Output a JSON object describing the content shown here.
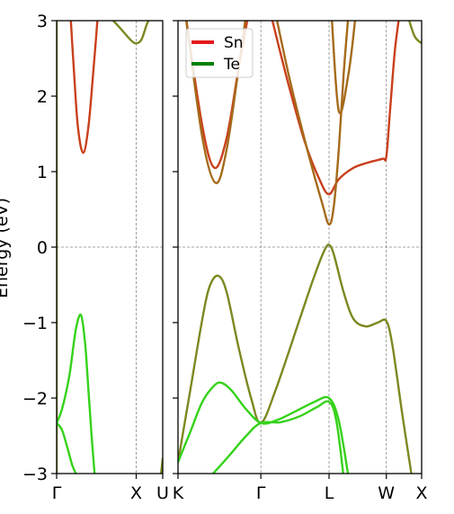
{
  "chart_data": {
    "type": "line",
    "ylabel": "Energy (eV)",
    "ylim": [
      -3,
      3
    ],
    "yticks": [
      -3,
      -2,
      -1,
      0,
      1,
      2,
      3
    ],
    "ytick_labels": [
      "−3",
      "−2",
      "−1",
      "0",
      "1",
      "2",
      "3"
    ],
    "grid": "dashed lines at high-symmetry points and at 0 eV",
    "legend": {
      "placement": "top-left",
      "entries": [
        {
          "name": "Sn",
          "color": "#e41a1c"
        },
        {
          "name": "Te",
          "color": "#008000"
        }
      ]
    },
    "panels": [
      {
        "xlim": [
          0,
          1
        ],
        "ticks": [
          {
            "pos": 0,
            "label": "Γ"
          },
          {
            "pos": 0.75,
            "label": "X"
          },
          {
            "pos": 1,
            "label": "U"
          }
        ],
        "bands": [
          {
            "color": "#8a8a14",
            "points": [
              [
                0.0,
                3.2
              ],
              [
                0.0,
                -3.0
              ]
            ]
          },
          {
            "color": "#c9401c",
            "points": [
              [
                0.13,
                3.1
              ],
              [
                0.16,
                2.4
              ],
              [
                0.2,
                1.6
              ],
              [
                0.25,
                1.25
              ],
              [
                0.3,
                1.6
              ],
              [
                0.35,
                2.4
              ],
              [
                0.39,
                3.1
              ]
            ]
          },
          {
            "color": "#7d8820",
            "points": [
              [
                0.5,
                3.05
              ],
              [
                0.6,
                2.9
              ],
              [
                0.7,
                2.74
              ],
              [
                0.75,
                2.7
              ],
              [
                0.8,
                2.75
              ],
              [
                0.85,
                2.95
              ],
              [
                0.9,
                3.1
              ]
            ]
          },
          {
            "color": "#35d21a",
            "points": [
              [
                0.0,
                -2.33
              ],
              [
                0.05,
                -2.42
              ],
              [
                0.1,
                -2.65
              ],
              [
                0.15,
                -2.9
              ],
              [
                0.2,
                -3.05
              ]
            ]
          },
          {
            "color": "#35d21a",
            "points": [
              [
                0.0,
                -2.33
              ],
              [
                0.05,
                -2.15
              ],
              [
                0.12,
                -1.7
              ],
              [
                0.18,
                -1.1
              ],
              [
                0.23,
                -0.9
              ],
              [
                0.27,
                -1.3
              ],
              [
                0.3,
                -1.9
              ],
              [
                0.33,
                -2.5
              ],
              [
                0.36,
                -3.05
              ]
            ]
          },
          {
            "color": "#7d8820",
            "points": [
              [
                0.98,
                -3.05
              ],
              [
                1.0,
                -2.8
              ]
            ]
          }
        ]
      },
      {
        "xlim": [
          0,
          1
        ],
        "ticks": [
          {
            "pos": 0,
            "label": "K"
          },
          {
            "pos": 0.34,
            "label": "Γ"
          },
          {
            "pos": 0.62,
            "label": "L"
          },
          {
            "pos": 0.855,
            "label": "W"
          },
          {
            "pos": 1,
            "label": "X"
          }
        ],
        "bands": [
          {
            "color": "#7d8820",
            "points": [
              [
                0.0,
                -2.85
              ],
              [
                0.05,
                -1.9
              ],
              [
                0.1,
                -0.95
              ],
              [
                0.13,
                -0.52
              ],
              [
                0.165,
                -0.38
              ],
              [
                0.2,
                -0.6
              ],
              [
                0.25,
                -1.35
              ],
              [
                0.3,
                -2.0
              ],
              [
                0.34,
                -2.33
              ],
              [
                0.4,
                -1.9
              ],
              [
                0.5,
                -0.95
              ],
              [
                0.56,
                -0.38
              ],
              [
                0.6,
                -0.05
              ],
              [
                0.62,
                0.03
              ],
              [
                0.64,
                -0.1
              ],
              [
                0.68,
                -0.6
              ],
              [
                0.72,
                -0.95
              ],
              [
                0.77,
                -1.05
              ],
              [
                0.82,
                -1.0
              ],
              [
                0.855,
                -0.98
              ],
              [
                0.88,
                -1.3
              ],
              [
                0.92,
                -2.2
              ],
              [
                0.96,
                -3.05
              ]
            ]
          },
          {
            "color": "#35d21a",
            "points": [
              [
                0.0,
                -2.85
              ],
              [
                0.05,
                -2.45
              ],
              [
                0.1,
                -2.05
              ],
              [
                0.15,
                -1.83
              ],
              [
                0.18,
                -1.8
              ],
              [
                0.22,
                -1.9
              ],
              [
                0.28,
                -2.15
              ],
              [
                0.34,
                -2.33
              ],
              [
                0.4,
                -2.3
              ],
              [
                0.48,
                -2.18
              ],
              [
                0.56,
                -2.05
              ],
              [
                0.62,
                -2.0
              ],
              [
                0.66,
                -2.3
              ],
              [
                0.7,
                -3.05
              ]
            ]
          },
          {
            "color": "#35d21a",
            "points": [
              [
                0.13,
                -3.05
              ],
              [
                0.2,
                -2.8
              ],
              [
                0.28,
                -2.5
              ],
              [
                0.34,
                -2.33
              ],
              [
                0.42,
                -2.32
              ],
              [
                0.5,
                -2.24
              ],
              [
                0.57,
                -2.12
              ],
              [
                0.62,
                -2.05
              ],
              [
                0.65,
                -2.3
              ],
              [
                0.68,
                -3.05
              ]
            ]
          },
          {
            "color": "#c9401c",
            "points": [
              [
                0.03,
                3.1
              ],
              [
                0.1,
                1.6
              ],
              [
                0.15,
                1.05
              ],
              [
                0.2,
                1.45
              ],
              [
                0.25,
                2.4
              ],
              [
                0.29,
                3.1
              ]
            ]
          },
          {
            "color": "#a56a1a",
            "points": [
              [
                0.03,
                3.1
              ],
              [
                0.1,
                1.45
              ],
              [
                0.155,
                0.85
              ],
              [
                0.2,
                1.3
              ],
              [
                0.25,
                2.4
              ],
              [
                0.28,
                3.1
              ]
            ]
          },
          {
            "color": "#c9401c",
            "points": [
              [
                0.38,
                3.1
              ],
              [
                0.45,
                2.2
              ],
              [
                0.52,
                1.4
              ],
              [
                0.58,
                0.9
              ],
              [
                0.62,
                0.7
              ],
              [
                0.66,
                0.9
              ],
              [
                0.72,
                1.05
              ],
              [
                0.78,
                1.12
              ],
              [
                0.84,
                1.17
              ],
              [
                0.855,
                1.2
              ],
              [
                0.87,
                1.8
              ],
              [
                0.89,
                2.6
              ],
              [
                0.91,
                3.1
              ]
            ]
          },
          {
            "color": "#a56a1a",
            "points": [
              [
                0.4,
                3.1
              ],
              [
                0.46,
                2.2
              ],
              [
                0.53,
                1.3
              ],
              [
                0.59,
                0.6
              ],
              [
                0.62,
                0.3
              ],
              [
                0.64,
                0.55
              ],
              [
                0.66,
                1.3
              ],
              [
                0.68,
                2.3
              ],
              [
                0.7,
                3.1
              ]
            ]
          },
          {
            "color": "#a56a1a",
            "points": [
              [
                0.63,
                3.1
              ],
              [
                0.66,
                1.8
              ],
              [
                0.7,
                2.3
              ],
              [
                0.73,
                3.1
              ]
            ]
          },
          {
            "color": "#7d8820",
            "points": [
              [
                0.94,
                3.1
              ],
              [
                0.97,
                2.8
              ],
              [
                1.0,
                2.7
              ]
            ]
          }
        ]
      }
    ]
  }
}
